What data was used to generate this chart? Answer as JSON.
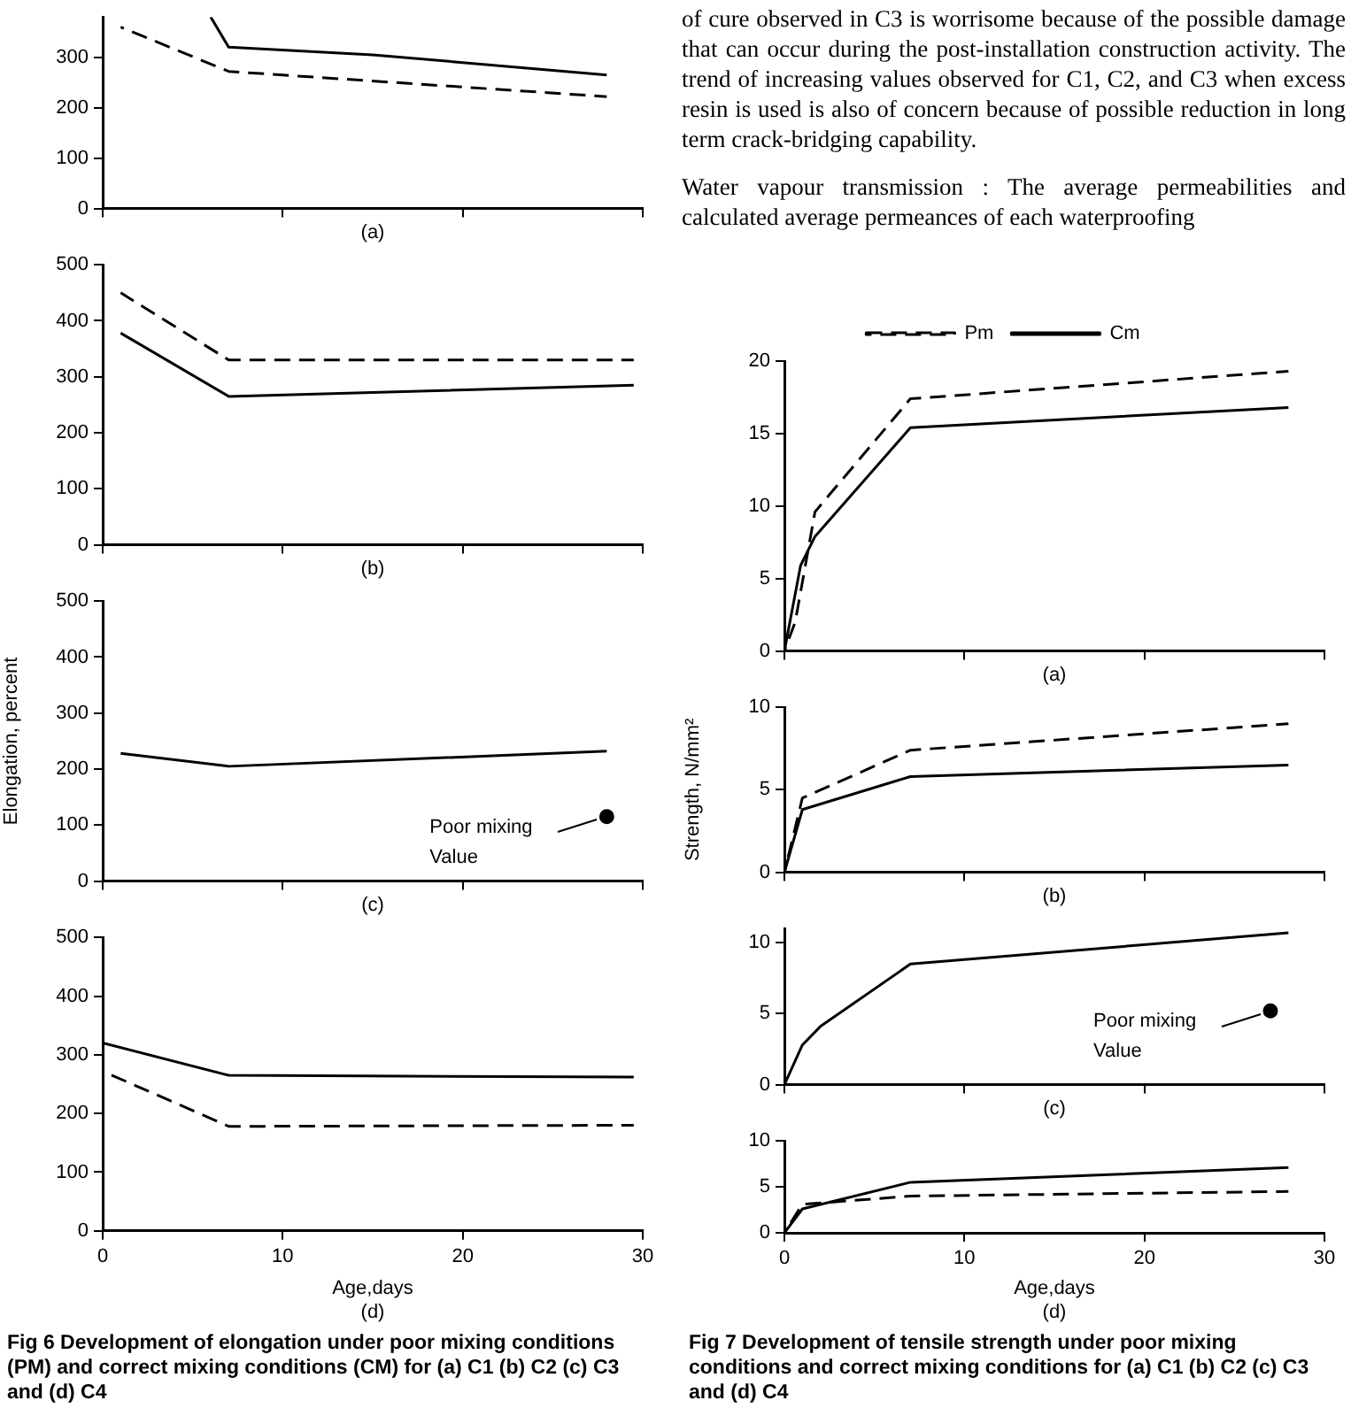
{
  "chart_data": [
    {
      "type": "line",
      "xlabel": "(a)",
      "xlim": [
        0,
        30
      ],
      "xticks": [
        0,
        10,
        20,
        30
      ],
      "ylim": [
        0,
        380
      ],
      "yticks": [
        0,
        100,
        200,
        300
      ],
      "tick_labels": "y",
      "grid": false,
      "series": [
        {
          "color": "#000000",
          "line_style": "solid",
          "x": [
            6,
            7,
            15,
            28
          ],
          "values": [
            380,
            320,
            305,
            265
          ]
        },
        {
          "color": "#000000",
          "line_style": "dashed",
          "x": [
            1,
            7,
            28
          ],
          "values": [
            360,
            272,
            222
          ]
        }
      ]
    },
    {
      "type": "line",
      "xlabel": "(b)",
      "xlim": [
        0,
        30
      ],
      "xticks": [
        0,
        10,
        20,
        30
      ],
      "ylim": [
        0,
        500
      ],
      "yticks": [
        0,
        100,
        200,
        300,
        400,
        500
      ],
      "tick_labels": "y",
      "grid": false,
      "series": [
        {
          "color": "#000000",
          "line_style": "solid",
          "x": [
            1,
            7,
            29.5
          ],
          "values": [
            378,
            265,
            285
          ]
        },
        {
          "color": "#000000",
          "line_style": "dashed",
          "x": [
            1,
            7,
            29.5
          ],
          "values": [
            450,
            330,
            330
          ]
        }
      ]
    },
    {
      "type": "line",
      "xlabel": "(c)",
      "ylabel": "Elongation, percent",
      "xlim": [
        0,
        30
      ],
      "xticks": [
        0,
        10,
        20,
        30
      ],
      "ylim": [
        0,
        500
      ],
      "yticks": [
        0,
        100,
        200,
        300,
        400,
        500
      ],
      "tick_labels": "y",
      "grid": false,
      "series": [
        {
          "color": "#000000",
          "line_style": "solid",
          "x": [
            1,
            7,
            28
          ],
          "values": [
            228,
            205,
            232
          ]
        },
        {
          "type": "scatter",
          "marker": "circle",
          "color": "#000000",
          "x": [
            28
          ],
          "values": [
            115
          ]
        }
      ],
      "annotations": [
        {
          "text": "Poor mixing Value",
          "x": 28,
          "y": 115
        }
      ]
    },
    {
      "type": "line",
      "xlabel": "Age,days\n(d)",
      "xlim": [
        0,
        30
      ],
      "xticks": [
        0,
        10,
        20,
        30
      ],
      "ylim": [
        0,
        500
      ],
      "yticks": [
        0,
        100,
        200,
        300,
        400,
        500
      ],
      "grid": false,
      "series": [
        {
          "color": "#000000",
          "line_style": "solid",
          "x": [
            0,
            7,
            29.5
          ],
          "values": [
            320,
            265,
            262
          ]
        },
        {
          "color": "#000000",
          "line_style": "dashed",
          "x": [
            0,
            7,
            29.5
          ],
          "values": [
            272,
            178,
            180
          ]
        }
      ],
      "annotations": [
        "Fig 6 Development of elongation under poor mixing conditions (PM) and correct mixing conditions (CM) for (a) C1 (b) C2 (c) C3 and (d) C4"
      ]
    },
    {
      "type": "other",
      "annotations": [
        "of cure observed in C3 is worrisome because of the possible damage that can occur during the post-installation construction activity. The trend of increasing values observed for C1, C2, and C3 when excess resin is used is also of concern because of possible reduction in long term crack-bridging capability.",
        "Water vapour transmission : The average permeabilities and calculated average permeances of each waterproofing"
      ]
    },
    {
      "type": "line",
      "xlabel": "(a)",
      "xlim": [
        0,
        30
      ],
      "xticks": [
        0,
        10,
        20,
        30
      ],
      "ylim": [
        0,
        20
      ],
      "yticks": [
        0,
        5,
        10,
        15,
        20
      ],
      "tick_labels": "y",
      "grid": false,
      "legend": "top",
      "series": [
        {
          "name": "Pm",
          "color": "#000000",
          "line_style": "dashed",
          "x": [
            0,
            0.6,
            1.7,
            7,
            28
          ],
          "values": [
            0,
            2,
            9.6,
            17.4,
            19.3
          ]
        },
        {
          "name": "Cm",
          "color": "#000000",
          "line_style": "solid",
          "x": [
            0,
            0.9,
            1.7,
            7,
            28
          ],
          "values": [
            0,
            5.9,
            7.9,
            15.4,
            16.8
          ]
        }
      ]
    },
    {
      "type": "line",
      "xlabel": "(b)",
      "ylabel": "Strength, N/mm²",
      "xlim": [
        0,
        30
      ],
      "xticks": [
        0,
        10,
        20,
        30
      ],
      "ylim": [
        0,
        10
      ],
      "yticks": [
        0,
        5,
        10
      ],
      "tick_labels": "y",
      "grid": false,
      "series": [
        {
          "color": "#000000",
          "line_style": "dashed",
          "x": [
            0,
            1,
            7,
            28
          ],
          "values": [
            0,
            4.5,
            7.4,
            9
          ]
        },
        {
          "color": "#000000",
          "line_style": "solid",
          "x": [
            0,
            1,
            7,
            28
          ],
          "values": [
            0,
            3.8,
            5.8,
            6.5
          ]
        }
      ]
    },
    {
      "type": "line",
      "xlabel": "(c)",
      "xlim": [
        0,
        30
      ],
      "xticks": [
        0,
        10,
        20,
        30
      ],
      "ylim": [
        0,
        11
      ],
      "yticks": [
        0,
        5,
        10
      ],
      "tick_labels": "y",
      "grid": false,
      "series": [
        {
          "color": "#000000",
          "line_style": "solid",
          "x": [
            0,
            1,
            2,
            7,
            28
          ],
          "values": [
            0,
            2.8,
            4.1,
            8.5,
            10.7
          ]
        },
        {
          "type": "scatter",
          "marker": "circle",
          "color": "#000000",
          "x": [
            27
          ],
          "values": [
            5.2
          ]
        }
      ],
      "annotations": [
        {
          "text": "Poor mixing Value",
          "x": 27,
          "y": 5.2
        }
      ]
    },
    {
      "type": "line",
      "xlabel": "Age,days\n(d)",
      "xlim": [
        0,
        30
      ],
      "xticks": [
        0,
        10,
        20,
        30
      ],
      "ylim": [
        0,
        10
      ],
      "yticks": [
        0,
        5,
        10
      ],
      "grid": false,
      "series": [
        {
          "color": "#000000",
          "line_style": "solid",
          "x": [
            0,
            1,
            7,
            28
          ],
          "values": [
            0,
            2.6,
            5.5,
            7.1
          ]
        },
        {
          "color": "#000000",
          "line_style": "dashed",
          "x": [
            0,
            1,
            7,
            28
          ],
          "values": [
            0,
            3.1,
            4,
            4.5
          ]
        }
      ],
      "annotations": [
        "Fig 7 Development of tensile strength under poor mixing conditions and correct mixing conditions for (a) C1 (b) C2 (c) C3 and (d) C4"
      ]
    }
  ]
}
